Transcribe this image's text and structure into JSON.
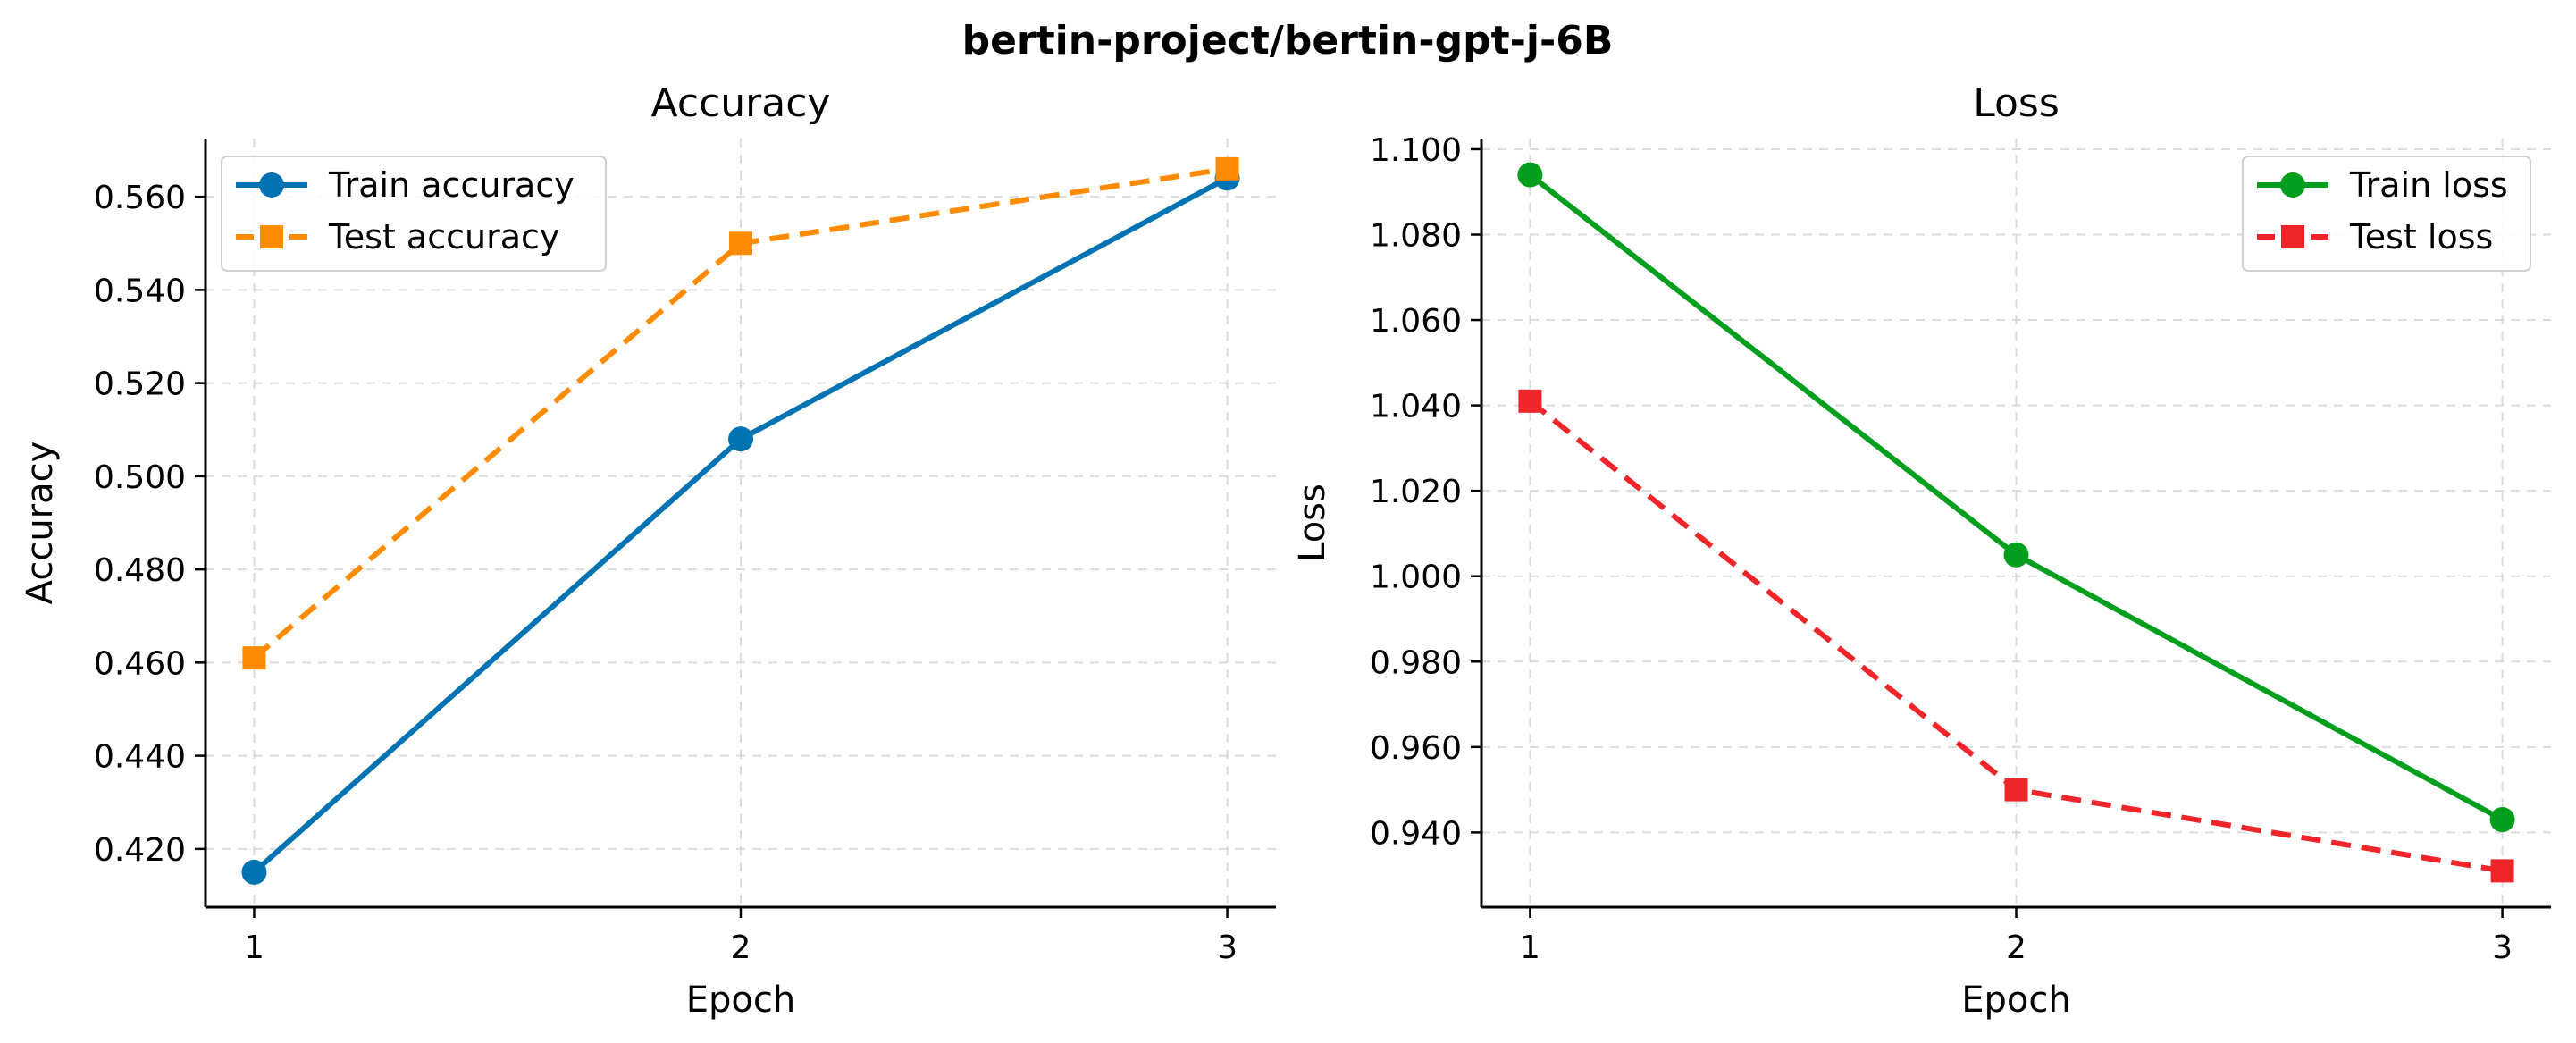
{
  "figure": {
    "title": "bertin-project/bertin-gpt-j-6B"
  },
  "chart_data": [
    {
      "type": "line",
      "title": "Accuracy",
      "xlabel": "Epoch",
      "ylabel": "Accuracy",
      "x": [
        1,
        2,
        3
      ],
      "xticks": [
        "1",
        "2",
        "3"
      ],
      "xlim": [
        0.9,
        3.1
      ],
      "ylim": [
        0.4075,
        0.5725
      ],
      "yticks": [
        0.42,
        0.44,
        0.46,
        0.48,
        0.5,
        0.52,
        0.54,
        0.56
      ],
      "ytick_labels": [
        "0.420",
        "0.440",
        "0.460",
        "0.480",
        "0.500",
        "0.520",
        "0.540",
        "0.560"
      ],
      "grid": true,
      "legend_position": "top-left",
      "series": [
        {
          "name": "Train accuracy",
          "values": [
            0.415,
            0.508,
            0.564
          ],
          "color": "#0173b2",
          "marker": "circle",
          "linestyle": "solid"
        },
        {
          "name": "Test accuracy",
          "values": [
            0.461,
            0.55,
            0.566
          ],
          "color": "#ff8c00",
          "marker": "square",
          "linestyle": "dashed"
        }
      ]
    },
    {
      "type": "line",
      "title": "Loss",
      "xlabel": "Epoch",
      "ylabel": "Loss",
      "x": [
        1,
        2,
        3
      ],
      "xticks": [
        "1",
        "2",
        "3"
      ],
      "xlim": [
        0.9,
        3.1
      ],
      "ylim": [
        0.9225,
        1.1025
      ],
      "yticks": [
        0.94,
        0.96,
        0.98,
        1.0,
        1.02,
        1.04,
        1.06,
        1.08,
        1.1
      ],
      "ytick_labels": [
        "0.940",
        "0.960",
        "0.980",
        "1.000",
        "1.020",
        "1.040",
        "1.060",
        "1.080",
        "1.100"
      ],
      "grid": true,
      "legend_position": "top-right",
      "series": [
        {
          "name": "Train loss",
          "values": [
            1.094,
            1.005,
            0.943
          ],
          "color": "#029e1e",
          "marker": "circle",
          "linestyle": "solid"
        },
        {
          "name": "Test loss",
          "values": [
            1.041,
            0.95,
            0.931
          ],
          "color": "#f0252a",
          "marker": "square",
          "linestyle": "dashed"
        }
      ]
    }
  ]
}
